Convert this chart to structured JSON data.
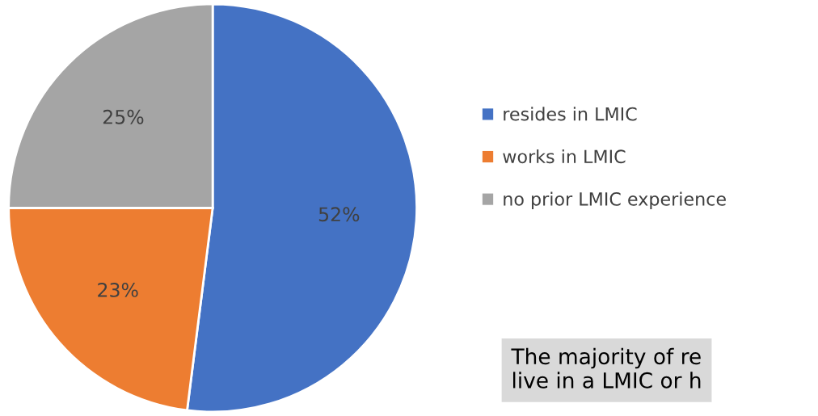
{
  "chart_data": {
    "type": "pie",
    "categories": [
      "resides in LMIC",
      "works in LMIC",
      "no prior LMIC experience"
    ],
    "values": [
      52,
      23,
      25
    ],
    "colors": [
      "#4472c4",
      "#ed7d31",
      "#a5a5a5"
    ],
    "value_labels": [
      "52%",
      "23%",
      "25%"
    ],
    "legend": "right",
    "annotations": [
      "The majority of re\nlive in a LMIC or h"
    ]
  }
}
